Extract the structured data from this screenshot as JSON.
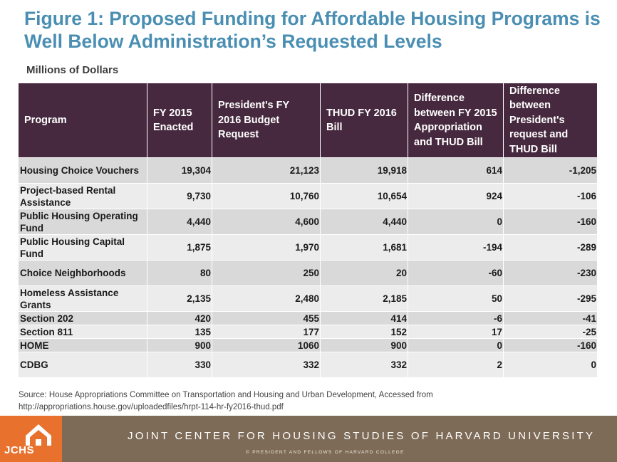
{
  "title": "Figure 1: Proposed Funding for Affordable Housing Programs is Well Below Administration’s Requested Levels",
  "units": "Millions of Dollars",
  "table": {
    "headers": [
      "Program",
      "FY 2015 Enacted",
      "President's FY 2016 Budget Request",
      "THUD FY 2016 Bill",
      "Difference between FY 2015 Appropriation and THUD Bill",
      "Difference between President's request and THUD Bill"
    ],
    "rows": [
      {
        "program": "Housing Choice Vouchers",
        "fy2015": "19,304",
        "request": "21,123",
        "thud": "19,918",
        "diff_fy2015": "614",
        "diff_request": "-1,205"
      },
      {
        "program": "Project-based Rental Assistance",
        "fy2015": "9,730",
        "request": "10,760",
        "thud": "10,654",
        "diff_fy2015": "924",
        "diff_request": "-106"
      },
      {
        "program": "Public Housing Operating Fund",
        "fy2015": "4,440",
        "request": "4,600",
        "thud": "4,440",
        "diff_fy2015": "0",
        "diff_request": "-160"
      },
      {
        "program": "Public Housing Capital Fund",
        "fy2015": "1,875",
        "request": "1,970",
        "thud": "1,681",
        "diff_fy2015": "-194",
        "diff_request": "-289"
      },
      {
        "program": "Choice Neighborhoods",
        "fy2015": "80",
        "request": "250",
        "thud": "20",
        "diff_fy2015": "-60",
        "diff_request": "-230"
      },
      {
        "program": "Homeless Assistance Grants",
        "fy2015": "2,135",
        "request": "2,480",
        "thud": "2,185",
        "diff_fy2015": "50",
        "diff_request": "-295"
      },
      {
        "program": "Section 202",
        "fy2015": "420",
        "request": "455",
        "thud": "414",
        "diff_fy2015": "-6",
        "diff_request": "-41"
      },
      {
        "program": "Section 811",
        "fy2015": "135",
        "request": "177",
        "thud": "152",
        "diff_fy2015": "17",
        "diff_request": "-25"
      },
      {
        "program": "HOME",
        "fy2015": "900",
        "request": "1060",
        "thud": "900",
        "diff_fy2015": "0",
        "diff_request": "-160"
      },
      {
        "program": "CDBG",
        "fy2015": "330",
        "request": "332",
        "thud": "332",
        "diff_fy2015": "2",
        "diff_request": "0"
      }
    ]
  },
  "source": "Source: House Appropriations Committee on Transportation and Housing and Urban Development, Accessed from http://appropriations.house.gov/uploadedfiles/hrpt-114-hr-fy2016-thud.pdf",
  "footer": {
    "logo_text": "JCHS",
    "org": "JOINT CENTER FOR HOUSING STUDIES OF HARVARD UNIVERSITY",
    "copyright": "© PRESIDENT AND FELLOWS OF HARVARD COLLEGE",
    "logo_icon": "house-icon"
  },
  "colors": {
    "title": "#4a8fb3",
    "header_bg": "#47293f",
    "row_dark": "#d9d9d9",
    "row_light": "#ececec",
    "logo_bg": "#e8712d",
    "footer_bg": "#7d6b57"
  }
}
